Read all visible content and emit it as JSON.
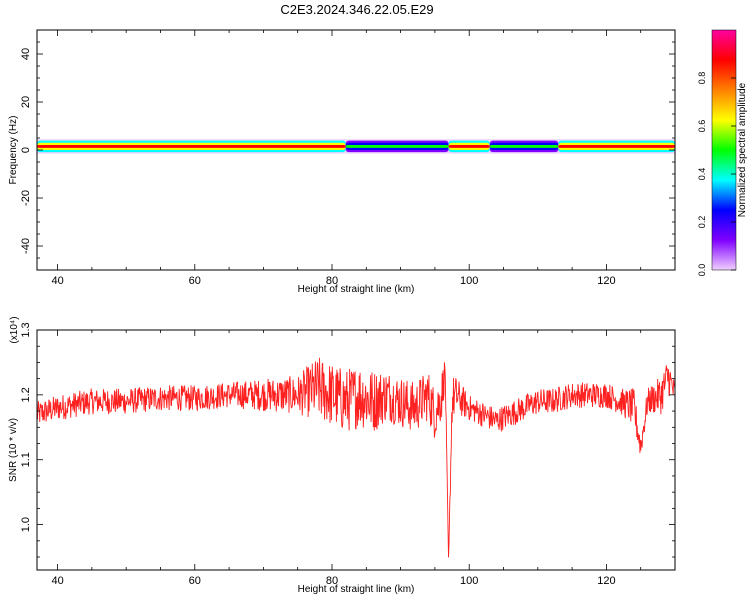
{
  "figure": {
    "title": "C2E3.2024.346.22.05.E29"
  },
  "chart_data": [
    {
      "type": "heatmap",
      "title": "C2E3.2024.346.22.05.E29",
      "xlabel": "Height of straight line (km)",
      "ylabel": "Frequency (Hz)",
      "xlim": [
        37,
        130
      ],
      "ylim": [
        -50,
        50
      ],
      "xticks": [
        40,
        60,
        80,
        100,
        120
      ],
      "yticks": [
        -40,
        -20,
        0,
        20,
        40
      ],
      "band": {
        "center_hz": 1.5,
        "core_halfwidth_hz": 1.5,
        "halo_halfwidth_hz": 3
      },
      "amplitude_segments": [
        {
          "x": [
            37,
            82
          ],
          "level": 0.85
        },
        {
          "x": [
            82,
            97
          ],
          "level": 0.45
        },
        {
          "x": [
            97,
            103
          ],
          "level": 0.85
        },
        {
          "x": [
            103,
            113
          ],
          "level": 0.5
        },
        {
          "x": [
            113,
            130
          ],
          "level": 0.85
        }
      ],
      "colorbar": {
        "label": "Normalized spectral amplitude",
        "range": [
          0,
          1
        ],
        "ticks": [
          "0.0",
          "0.2",
          "0.4",
          "0.6",
          "0.8"
        ],
        "colors": [
          "#f0d0ff",
          "#8000ff",
          "#0000ff",
          "#00ffff",
          "#00ff00",
          "#ffff00",
          "#ff8000",
          "#ff0000",
          "#ff00a0"
        ]
      },
      "grid": false
    },
    {
      "type": "line",
      "xlabel": "Height of straight line (km)",
      "ylabel": "SNR (10 * v/v)",
      "scale_label": "(x10⁴)",
      "xlim": [
        37,
        130
      ],
      "ylim": [
        0.93,
        1.3
      ],
      "xticks": [
        40,
        60,
        80,
        100,
        120
      ],
      "yticks": [
        "1.0",
        "1.1",
        "1.2",
        "1.3"
      ],
      "series": [
        {
          "color": "#ff2020",
          "x": [
            37,
            40,
            45,
            50,
            55,
            60,
            65,
            70,
            75,
            78,
            80,
            82,
            84,
            86,
            88,
            90,
            92,
            94,
            95,
            96,
            96.5,
            97,
            97.5,
            98,
            100,
            102,
            104,
            106,
            108,
            110,
            112,
            115,
            118,
            120,
            122,
            124,
            125,
            126,
            128,
            129,
            130
          ],
          "values": [
            1.17,
            1.18,
            1.19,
            1.19,
            1.195,
            1.195,
            1.2,
            1.2,
            1.2,
            1.21,
            1.2,
            1.19,
            1.2,
            1.19,
            1.2,
            1.19,
            1.18,
            1.2,
            1.17,
            1.2,
            1.24,
            0.94,
            1.19,
            1.2,
            1.18,
            1.17,
            1.16,
            1.17,
            1.18,
            1.19,
            1.19,
            1.2,
            1.2,
            1.2,
            1.19,
            1.18,
            1.12,
            1.19,
            1.2,
            1.23,
            1.2
          ],
          "noise_amplitude": [
            0.02,
            0.02,
            0.02,
            0.02,
            0.02,
            0.02,
            0.02,
            0.025,
            0.03,
            0.05,
            0.05,
            0.05,
            0.05,
            0.05,
            0.04,
            0.04,
            0.04,
            0.04,
            0.04,
            0.04,
            0.02,
            0.0,
            0.04,
            0.03,
            0.02,
            0.02,
            0.02,
            0.02,
            0.02,
            0.02,
            0.02,
            0.02,
            0.02,
            0.02,
            0.02,
            0.03,
            0.02,
            0.02,
            0.03,
            0.03,
            0.02
          ]
        }
      ],
      "grid": false
    }
  ]
}
